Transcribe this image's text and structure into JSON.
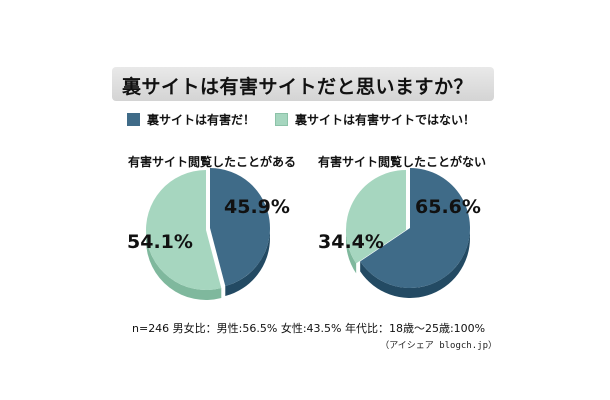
{
  "title": "裏サイトは有害サイトだと思いますか？",
  "legend": [
    {
      "label": "裏サイトは有害だ！",
      "color": "#3f6b88"
    },
    {
      "label": "裏サイトは有害サイトではない！",
      "color": "#a6d6bf"
    }
  ],
  "colors": {
    "dark": "#3f6b88",
    "dark_side": "#234a63",
    "light": "#a6d6bf",
    "light_side": "#7fb89d"
  },
  "note": "n=246 男女比：男性:56.5% 女性:43.5% 年代比：18歳～25歳:100%",
  "source": "（アイシェア blogch.jp）",
  "chart_data": [
    {
      "type": "pie",
      "title": "有害サイト閲覧したことがある",
      "series": [
        {
          "name": "裏サイトは有害だ！",
          "value": 45.9,
          "label": "45.9%"
        },
        {
          "name": "裏サイトは有害サイトではない！",
          "value": 54.1,
          "label": "54.1%"
        }
      ]
    },
    {
      "type": "pie",
      "title": "有害サイト閲覧したことがない",
      "series": [
        {
          "name": "裏サイトは有害だ！",
          "value": 65.6,
          "label": "65.6%"
        },
        {
          "name": "裏サイトは有害サイトではない！",
          "value": 34.4,
          "label": "34.4%"
        }
      ]
    }
  ]
}
